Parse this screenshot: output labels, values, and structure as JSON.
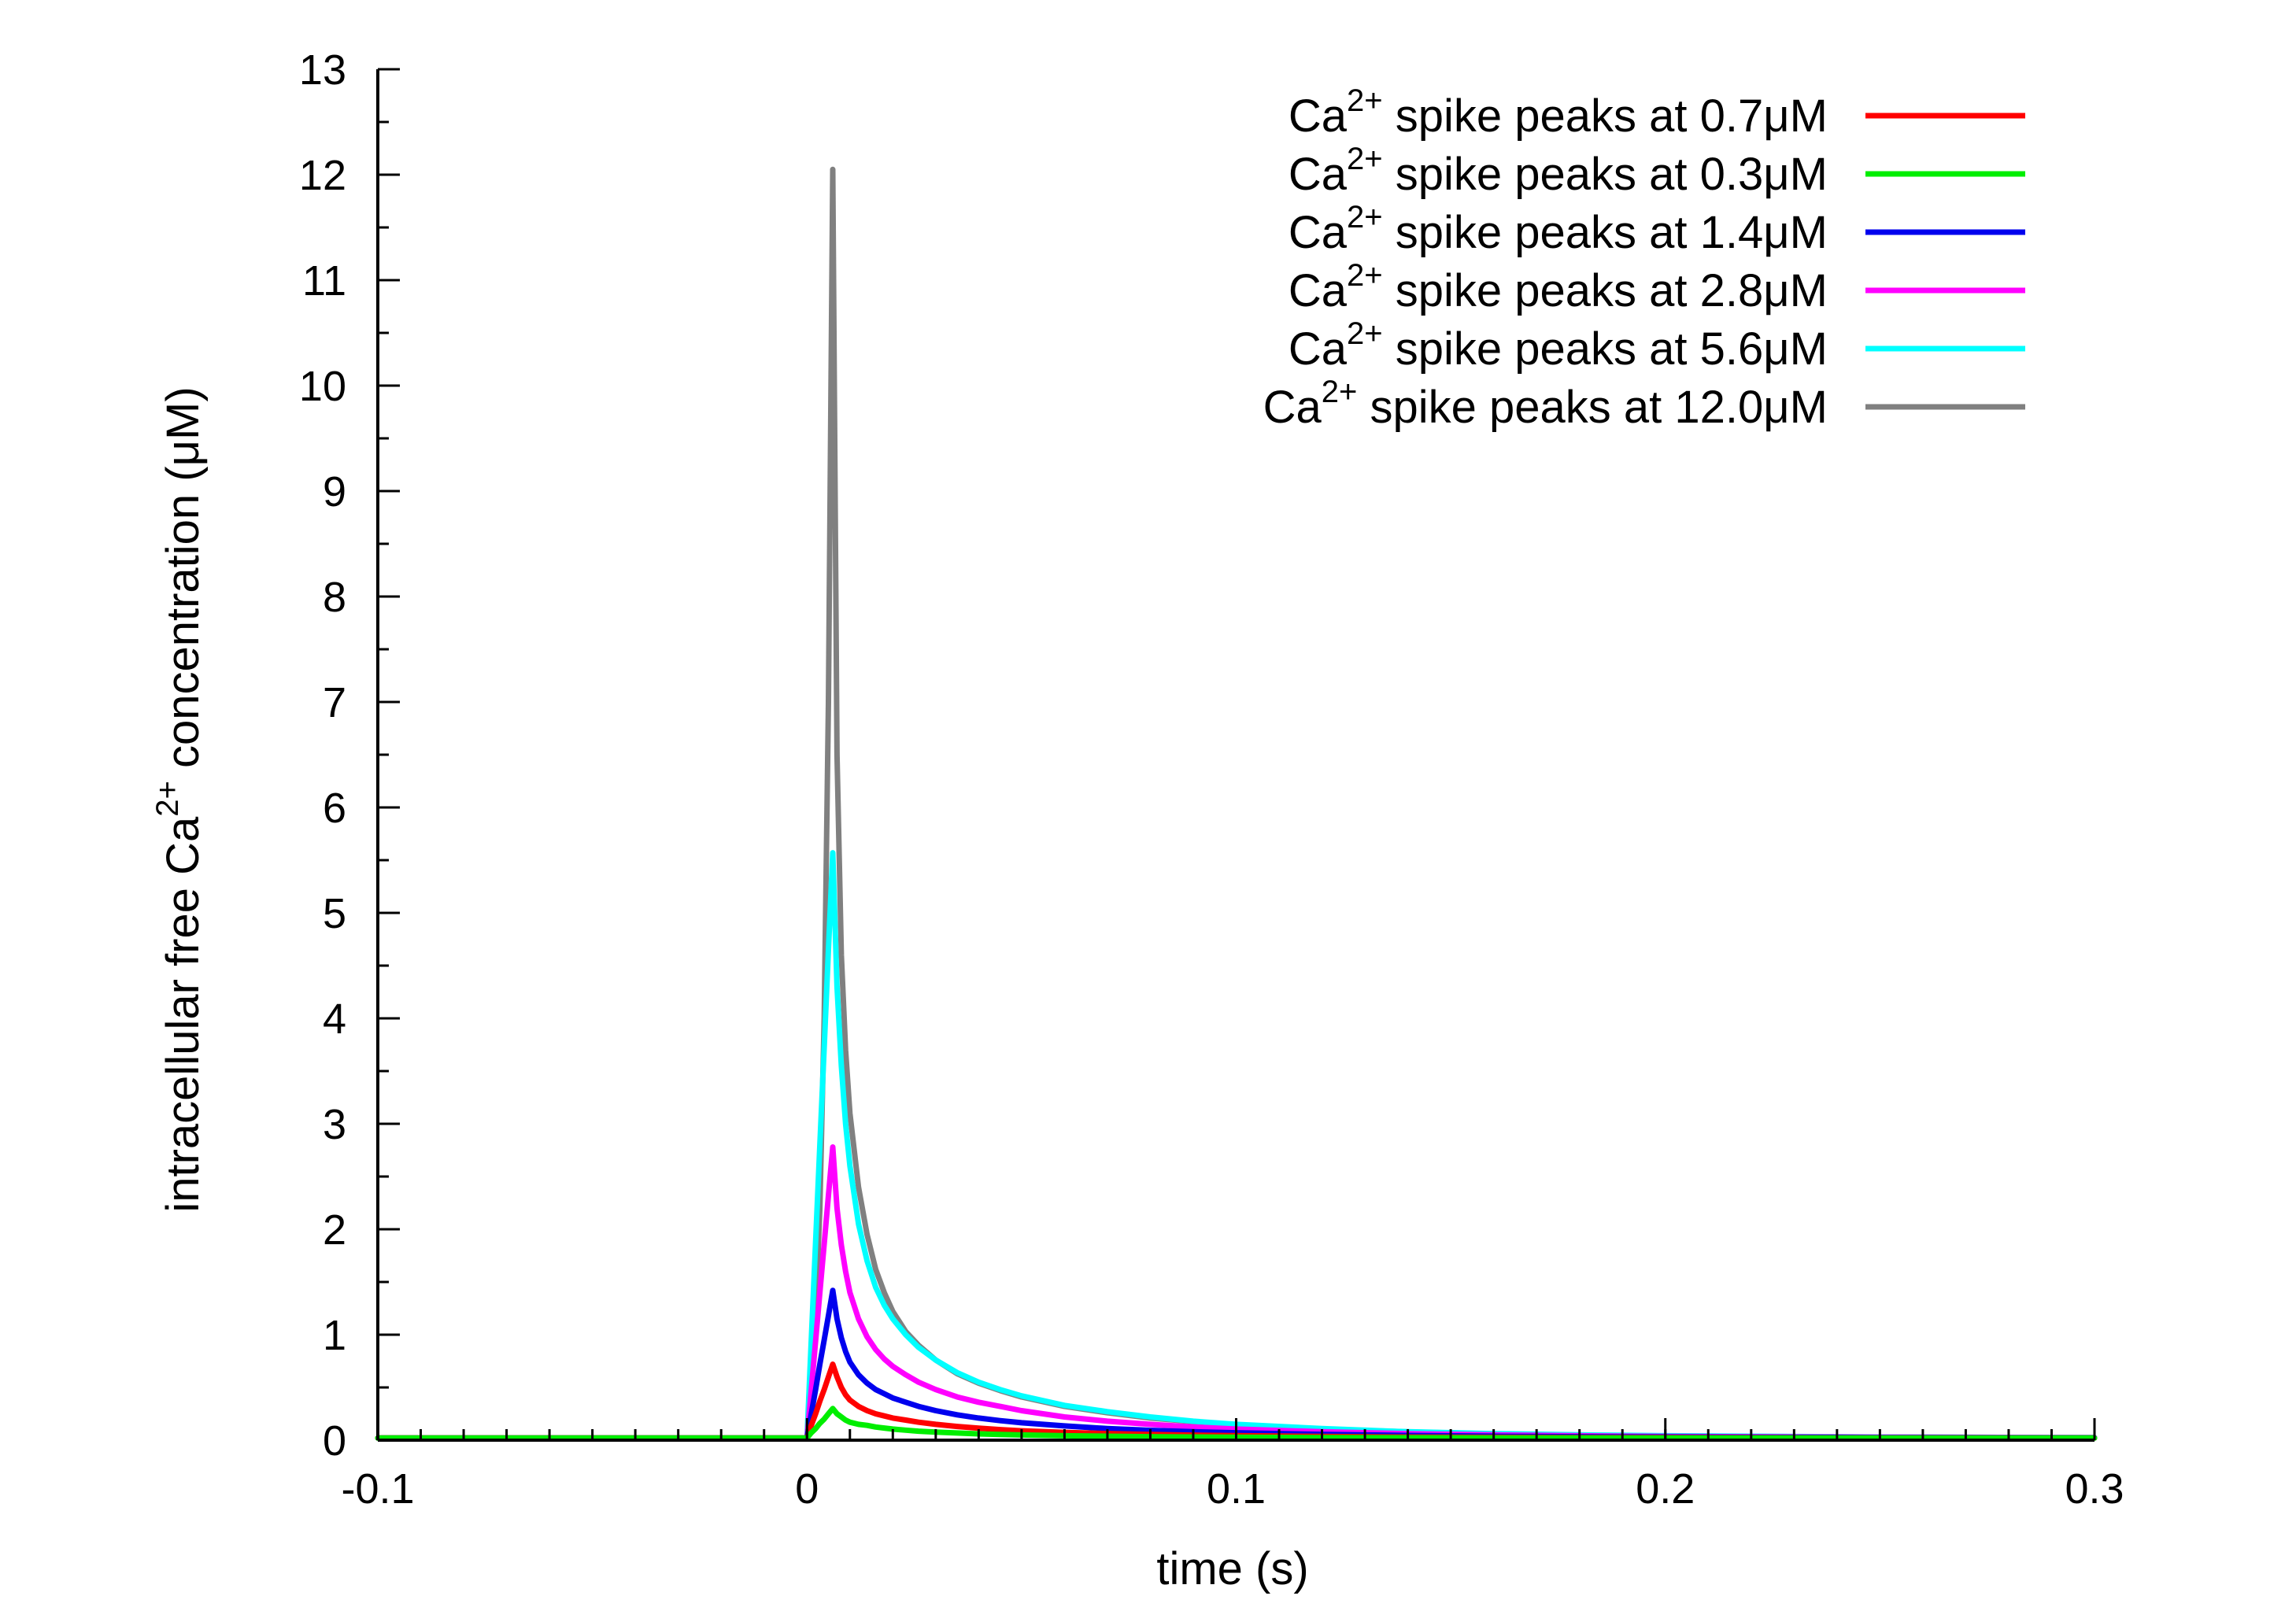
{
  "chart_data": {
    "type": "line",
    "xlabel": "time (s)",
    "ylabel_parts": [
      "intracellular free Ca",
      "2+",
      " concentration (μM)"
    ],
    "xlim": [
      -0.1,
      0.3
    ],
    "ylim": [
      0,
      13
    ],
    "x_major_ticks": [
      -0.1,
      0,
      0.1,
      0.2,
      0.3
    ],
    "x_tick_labels": [
      "-0.1",
      "0",
      "0.1",
      "0.2",
      "0.3"
    ],
    "y_major_ticks": [
      0,
      1,
      2,
      3,
      4,
      5,
      6,
      7,
      8,
      9,
      10,
      11,
      12,
      13
    ],
    "y_tick_labels": [
      "0",
      "1",
      "2",
      "3",
      "4",
      "5",
      "6",
      "7",
      "8",
      "9",
      "10",
      "11",
      "12",
      "13"
    ],
    "x_minor_step": 0.01,
    "y_minor_step": 0.5,
    "grid": false,
    "legend_position": "top-right",
    "series": [
      {
        "name_parts": [
          "Ca",
          "2+",
          " spike peaks at 0.7μM"
        ],
        "color": "#ff0000",
        "x": [
          -0.1,
          0,
          0.001,
          0.002,
          0.003,
          0.004,
          0.005,
          0.006,
          0.007,
          0.008,
          0.009,
          0.01,
          0.012,
          0.014,
          0.016,
          0.018,
          0.02,
          0.023,
          0.026,
          0.03,
          0.035,
          0.04,
          0.045,
          0.05,
          0.06,
          0.07,
          0.08,
          0.09,
          0.1,
          0.12,
          0.14,
          0.16,
          0.18,
          0.2,
          0.25,
          0.3
        ],
        "y": [
          0.02,
          0.02,
          0.14,
          0.25,
          0.37,
          0.48,
          0.6,
          0.72,
          0.6,
          0.5,
          0.43,
          0.38,
          0.32,
          0.28,
          0.25,
          0.23,
          0.21,
          0.19,
          0.17,
          0.15,
          0.13,
          0.114,
          0.1,
          0.089,
          0.074,
          0.063,
          0.054,
          0.048,
          0.043,
          0.035,
          0.03,
          0.027,
          0.025,
          0.024,
          0.021,
          0.02
        ]
      },
      {
        "name_parts": [
          "Ca",
          "2+",
          " spike peaks at 0.3μM"
        ],
        "color": "#00ee00",
        "x": [
          -0.1,
          0,
          0.001,
          0.002,
          0.003,
          0.004,
          0.005,
          0.006,
          0.007,
          0.008,
          0.009,
          0.01,
          0.012,
          0.014,
          0.016,
          0.018,
          0.02,
          0.023,
          0.026,
          0.03,
          0.035,
          0.04,
          0.045,
          0.05,
          0.06,
          0.07,
          0.08,
          0.09,
          0.1,
          0.12,
          0.14,
          0.16,
          0.18,
          0.2,
          0.25,
          0.3
        ],
        "y": [
          0.02,
          0.02,
          0.07,
          0.11,
          0.16,
          0.2,
          0.25,
          0.3,
          0.25,
          0.22,
          0.19,
          0.17,
          0.15,
          0.14,
          0.125,
          0.115,
          0.105,
          0.095,
          0.085,
          0.077,
          0.068,
          0.06,
          0.054,
          0.049,
          0.042,
          0.037,
          0.033,
          0.03,
          0.028,
          0.025,
          0.023,
          0.022,
          0.021,
          0.021,
          0.02,
          0.02
        ]
      },
      {
        "name_parts": [
          "Ca",
          "2+",
          " spike peaks at 1.4μM"
        ],
        "color": "#0000ee",
        "x": [
          -0.1,
          0,
          0.001,
          0.002,
          0.003,
          0.004,
          0.005,
          0.006,
          0.007,
          0.008,
          0.009,
          0.01,
          0.012,
          0.014,
          0.016,
          0.018,
          0.02,
          0.023,
          0.026,
          0.03,
          0.035,
          0.04,
          0.045,
          0.05,
          0.06,
          0.07,
          0.08,
          0.09,
          0.1,
          0.12,
          0.14,
          0.16,
          0.18,
          0.2,
          0.25,
          0.3
        ],
        "y": [
          0.02,
          0.02,
          0.25,
          0.48,
          0.72,
          0.95,
          1.18,
          1.42,
          1.15,
          0.97,
          0.84,
          0.74,
          0.62,
          0.54,
          0.48,
          0.44,
          0.4,
          0.36,
          0.32,
          0.28,
          0.24,
          0.21,
          0.185,
          0.165,
          0.135,
          0.11,
          0.093,
          0.08,
          0.07,
          0.055,
          0.045,
          0.038,
          0.033,
          0.03,
          0.025,
          0.022
        ]
      },
      {
        "name_parts": [
          "Ca",
          "2+",
          " spike peaks at 2.8μM"
        ],
        "color": "#ff00ff",
        "x": [
          -0.1,
          0,
          0.001,
          0.002,
          0.003,
          0.004,
          0.005,
          0.006,
          0.007,
          0.008,
          0.009,
          0.01,
          0.012,
          0.014,
          0.016,
          0.018,
          0.02,
          0.023,
          0.026,
          0.03,
          0.035,
          0.04,
          0.045,
          0.05,
          0.06,
          0.07,
          0.08,
          0.09,
          0.1,
          0.12,
          0.14,
          0.16,
          0.18,
          0.2,
          0.25,
          0.3
        ],
        "y": [
          0.02,
          0.02,
          0.48,
          0.94,
          1.4,
          1.86,
          2.32,
          2.78,
          2.2,
          1.85,
          1.6,
          1.4,
          1.15,
          0.98,
          0.86,
          0.77,
          0.7,
          0.62,
          0.55,
          0.48,
          0.41,
          0.36,
          0.32,
          0.28,
          0.22,
          0.18,
          0.15,
          0.125,
          0.105,
          0.08,
          0.062,
          0.05,
          0.042,
          0.036,
          0.028,
          0.023
        ]
      },
      {
        "name_parts": [
          "Ca",
          "2+",
          " spike peaks at 5.6μM"
        ],
        "color": "#00ffff",
        "x": [
          -0.1,
          0,
          0.001,
          0.002,
          0.003,
          0.004,
          0.005,
          0.006,
          0.007,
          0.008,
          0.009,
          0.01,
          0.012,
          0.014,
          0.016,
          0.018,
          0.02,
          0.023,
          0.026,
          0.03,
          0.035,
          0.04,
          0.045,
          0.05,
          0.06,
          0.07,
          0.08,
          0.09,
          0.1,
          0.12,
          0.14,
          0.16,
          0.18,
          0.2,
          0.25,
          0.3
        ],
        "y": [
          0.02,
          0.02,
          0.95,
          1.88,
          2.8,
          3.72,
          4.65,
          5.57,
          4.3,
          3.55,
          3.0,
          2.6,
          2.05,
          1.7,
          1.45,
          1.28,
          1.15,
          1.0,
          0.88,
          0.76,
          0.64,
          0.55,
          0.48,
          0.42,
          0.33,
          0.27,
          0.22,
          0.18,
          0.15,
          0.11,
          0.08,
          0.062,
          0.05,
          0.042,
          0.03,
          0.024
        ]
      },
      {
        "name_parts": [
          "Ca",
          "2+",
          " spike peaks at 12.0μM"
        ],
        "color": "#808080",
        "x": [
          -0.1,
          0,
          0.001,
          0.002,
          0.003,
          0.004,
          0.005,
          0.006,
          0.007,
          0.008,
          0.009,
          0.01,
          0.012,
          0.014,
          0.016,
          0.018,
          0.02,
          0.023,
          0.026,
          0.03,
          0.035,
          0.04,
          0.045,
          0.05,
          0.06,
          0.07,
          0.08,
          0.09,
          0.1,
          0.12,
          0.14,
          0.16,
          0.18,
          0.2,
          0.25,
          0.3
        ],
        "y": [
          0.02,
          0.02,
          0.5,
          1.2,
          2.2,
          4.0,
          7.0,
          12.05,
          6.5,
          4.6,
          3.7,
          3.1,
          2.4,
          1.95,
          1.62,
          1.4,
          1.22,
          1.03,
          0.9,
          0.76,
          0.63,
          0.54,
          0.47,
          0.41,
          0.32,
          0.26,
          0.21,
          0.175,
          0.145,
          0.105,
          0.078,
          0.06,
          0.048,
          0.04,
          0.029,
          0.023
        ]
      }
    ]
  }
}
